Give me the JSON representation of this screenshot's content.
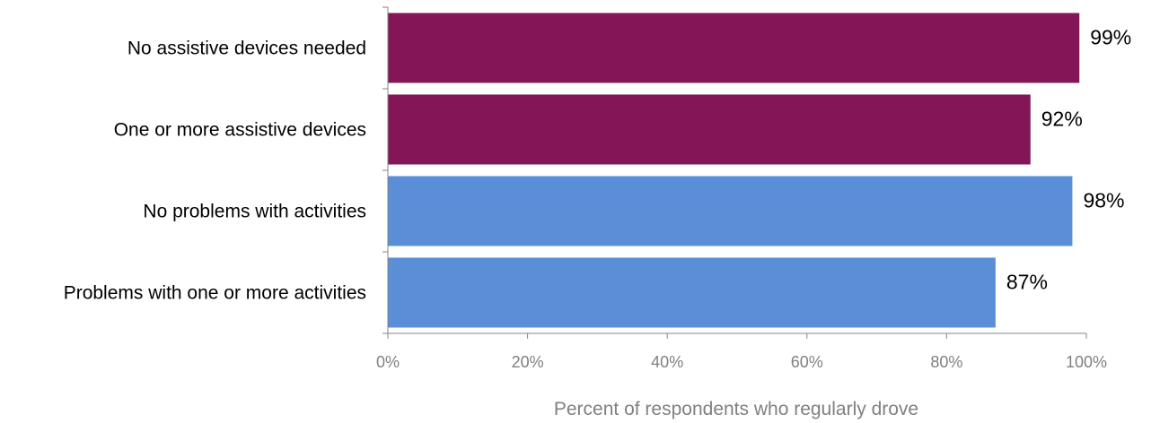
{
  "chart_data": {
    "type": "bar",
    "orientation": "horizontal",
    "categories": [
      "No assistive devices needed",
      "One or more assistive devices",
      "No problems with activities",
      "Problems with one or more activities"
    ],
    "values": [
      99,
      92,
      98,
      87
    ],
    "value_labels": [
      "99%",
      "92%",
      "98%",
      "87%"
    ],
    "bar_colors": [
      "#831656",
      "#831656",
      "#5A8FD7",
      "#5A8FD7"
    ],
    "xlim": [
      0,
      100
    ],
    "x_ticks": [
      0,
      20,
      40,
      60,
      80,
      100
    ],
    "x_tick_labels": [
      "0%",
      "20%",
      "40%",
      "60%",
      "80%",
      "100%"
    ],
    "xlabel": "Percent of respondents who regularly drove",
    "ylabel": "",
    "title": "",
    "grid": false,
    "legend": "none"
  }
}
